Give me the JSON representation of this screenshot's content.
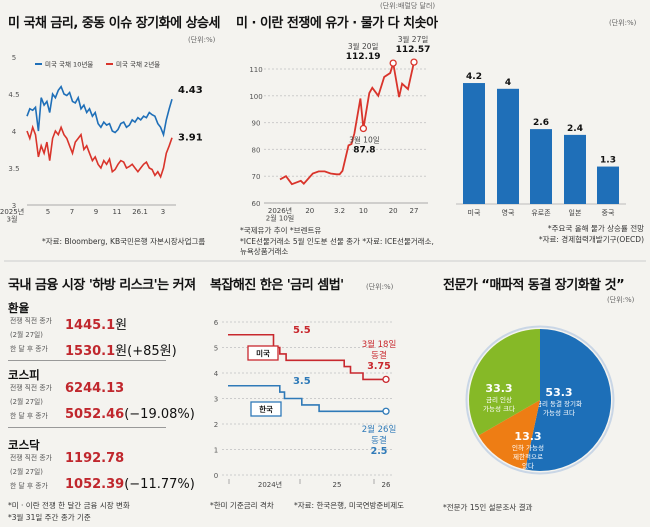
{
  "chart_data": [
    {
      "type": "line",
      "title": "미 국채 금리, 중동 이슈 장기화에 상승세",
      "unit": "(단위:%)",
      "ylim": [
        3,
        5
      ],
      "yticks": [
        "5",
        "4.5",
        "4",
        "3.5",
        "3"
      ],
      "xticks": [
        "2025년\n3월",
        "5",
        "7",
        "9",
        "11",
        "26.1",
        "3"
      ],
      "series": [
        {
          "name": "미국 국채 10년물",
          "color": "#1f6fb8",
          "end_label": "4.43",
          "values": [
            4.2,
            4.3,
            4.28,
            4.32,
            4.0,
            4.45,
            4.35,
            4.4,
            4.25,
            4.5,
            4.45,
            4.55,
            4.6,
            4.5,
            4.48,
            4.52,
            4.4,
            4.38,
            4.45,
            4.3,
            4.35,
            4.25,
            4.3,
            4.2,
            4.25,
            4.1,
            4.05,
            4.12,
            4.08,
            4.1,
            4.0,
            3.98,
            4.02,
            4.1,
            4.12,
            4.05,
            4.08,
            4.15,
            4.12,
            4.18,
            4.15,
            4.2,
            4.18,
            4.25,
            4.22,
            4.2,
            4.1,
            4.05,
            3.95,
            4.15,
            4.3,
            4.43
          ]
        },
        {
          "name": "미국 국채 2년물",
          "color": "#d9342b",
          "end_label": "3.91",
          "values": [
            4.0,
            3.9,
            4.05,
            3.95,
            3.65,
            3.8,
            3.7,
            3.85,
            3.6,
            3.9,
            4.0,
            3.95,
            4.05,
            3.95,
            3.9,
            3.8,
            3.7,
            3.85,
            3.9,
            3.95,
            3.75,
            3.8,
            3.7,
            3.6,
            3.65,
            3.55,
            3.5,
            3.6,
            3.55,
            3.62,
            3.45,
            3.48,
            3.55,
            3.6,
            3.58,
            3.5,
            3.52,
            3.55,
            3.5,
            3.45,
            3.5,
            3.55,
            3.58,
            3.5,
            3.48,
            3.4,
            3.45,
            3.38,
            3.5,
            3.7,
            3.8,
            3.91
          ]
        }
      ],
      "note": "*자료: Bloomberg, KB국민은행 자본시장사업그룹"
    },
    {
      "type": "line",
      "title": "미 · 이란 전쟁에 유가 · 물가 다 치솟아",
      "unit": "(단위:배럴당 달러)",
      "ylim": [
        60,
        115
      ],
      "yticks": [
        "110",
        "100",
        "90",
        "80",
        "70",
        "60"
      ],
      "xticks": [
        {
          "day": 0,
          "label": "2026년\n2월 10일"
        },
        {
          "day": 10,
          "label": "20"
        },
        {
          "day": 20,
          "label": "3.2"
        },
        {
          "day": 28,
          "label": "10"
        },
        {
          "day": 38,
          "label": "20"
        },
        {
          "day": 45,
          "label": "27"
        }
      ],
      "points": [
        [
          0,
          68.8
        ],
        [
          2,
          70
        ],
        [
          4,
          67
        ],
        [
          7,
          68.3
        ],
        [
          8,
          67.2
        ],
        [
          11,
          71
        ],
        [
          13,
          71.8
        ],
        [
          15,
          71.8
        ],
        [
          17,
          71
        ],
        [
          19,
          70.7
        ],
        [
          20,
          70.7
        ],
        [
          21,
          72
        ],
        [
          23,
          81.5
        ],
        [
          24,
          82
        ],
        [
          25,
          86
        ],
        [
          27,
          99
        ],
        [
          28,
          87.8
        ],
        [
          30,
          101
        ],
        [
          31,
          103
        ],
        [
          33,
          100
        ],
        [
          35,
          107
        ],
        [
          37,
          108.5
        ],
        [
          38,
          112.19
        ],
        [
          40,
          99.5
        ],
        [
          41,
          104.5
        ],
        [
          43,
          102.5
        ],
        [
          45,
          112.57
        ]
      ],
      "annotations": [
        {
          "day": 28,
          "value": 87.8,
          "date": "3월 10일",
          "text": "87.8"
        },
        {
          "day": 38,
          "value": 112.19,
          "date": "3월 20일",
          "text": "112.19"
        },
        {
          "day": 45,
          "value": 112.57,
          "date": "3월 27일",
          "text": "112.57"
        }
      ],
      "notes": [
        "*국제유가 추이  *브렌트유",
        "*ICE선물거래소 5월 인도분 선물 종가  *자료: ICE선물거래소, 뉴욕상품거래소"
      ],
      "color": "#d9342b"
    },
    {
      "type": "bar",
      "unit": "(단위:%)",
      "categories": [
        "미국",
        "영국",
        "유로존",
        "일본",
        "중국"
      ],
      "values": [
        4.2,
        4,
        2.6,
        2.4,
        1.3
      ],
      "labels": [
        "4.2",
        "4",
        "2.6",
        "2.4",
        "1.3"
      ],
      "ylim": [
        0,
        4.5
      ],
      "color": "#1f6fb8",
      "notes": [
        "*주요국 올해 물가 상승률 전망",
        "*자료: 경제협력개발기구(OECD)"
      ]
    },
    {
      "type": "line",
      "title": "복잡해진 한은 '금리 셈법'",
      "unit": "(단위:%)",
      "ylim": [
        0,
        6
      ],
      "yticks": [
        "6",
        "5",
        "4",
        "3",
        "2",
        "1",
        "0"
      ],
      "xticks": [
        "2024년",
        "25",
        "26"
      ],
      "series": [
        {
          "name": "미국",
          "color": "#c8282e",
          "steps": [
            [
              0,
              5.5
            ],
            [
              0.29,
              5.0
            ],
            [
              0.33,
              4.75
            ],
            [
              0.37,
              4.5
            ],
            [
              0.74,
              4.25
            ],
            [
              0.78,
              4.0
            ],
            [
              0.86,
              3.75
            ],
            [
              1,
              3.75
            ]
          ],
          "start_label": "5.5",
          "end_date": "3월 18일",
          "end_status": "동결",
          "end_label": "3.75"
        },
        {
          "name": "한국",
          "color": "#2f7ab8",
          "steps": [
            [
              0,
              3.5
            ],
            [
              0.33,
              3.25
            ],
            [
              0.36,
              3.0
            ],
            [
              0.47,
              2.75
            ],
            [
              0.58,
              2.5
            ],
            [
              1,
              2.5
            ]
          ],
          "start_label": "3.5",
          "end_date": "2월 26일",
          "end_status": "동결",
          "end_label": "2.5"
        }
      ],
      "notes": [
        "*한미 기준금리 격차",
        "*자료: 한국은행, 미국연방준비제도"
      ]
    },
    {
      "type": "pie",
      "title": "전문가 “매파적 동결 장기화할 것”",
      "unit": "(단위:%)",
      "slices": [
        {
          "value": 53.3,
          "label": "53.3",
          "desc": [
            "금리 동결 장기화",
            "가능성 크다"
          ],
          "color": "#1d6fb8"
        },
        {
          "value": 13.3,
          "label": "13.3",
          "desc": [
            "인하 가능성",
            "제한적으로",
            "있다"
          ],
          "color": "#ee7d14"
        },
        {
          "value": 33.3,
          "label": "33.3",
          "desc": [
            "금리 인상",
            "가능성 크다"
          ],
          "color": "#86b927"
        }
      ],
      "note": "*전문가 15인 설문조사 결과"
    }
  ],
  "market": {
    "title": "국내 금융 시장 '하방 리스크'는 커져",
    "row_labels": {
      "before": "전쟁 직전 종가",
      "before_date": "(2월 27일)",
      "after": "한 달 후 종가"
    },
    "items": [
      {
        "name": "환율",
        "before": "1445.1",
        "before_unit": "원",
        "after": "1530.1",
        "after_suffix": "원(+85원)"
      },
      {
        "name": "코스피",
        "before": "6244.13",
        "before_unit": "",
        "after": "5052.46",
        "after_suffix": "(−19.08%)"
      },
      {
        "name": "코스닥",
        "before": "1192.78",
        "before_unit": "",
        "after": "1052.39",
        "after_suffix": "(−11.77%)"
      }
    ],
    "notes": [
      "*미 · 이란 전쟁 한 달간 금융 시장 변화",
      "*3월 31일 주간 종가 기준"
    ]
  }
}
